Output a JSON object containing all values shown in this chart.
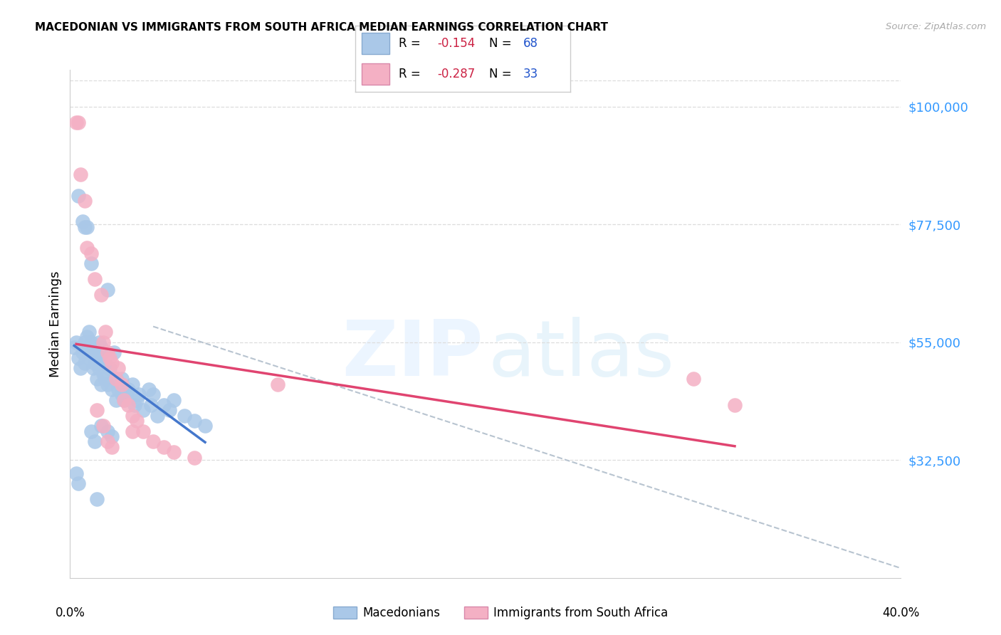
{
  "title": "MACEDONIAN VS IMMIGRANTS FROM SOUTH AFRICA MEDIAN EARNINGS CORRELATION CHART",
  "source": "Source: ZipAtlas.com",
  "ylabel": "Median Earnings",
  "ytick_labels": [
    "$32,500",
    "$55,000",
    "$77,500",
    "$100,000"
  ],
  "ytick_values": [
    32500,
    55000,
    77500,
    100000
  ],
  "legend_label_blue": "Macedonians",
  "legend_label_pink": "Immigrants from South Africa",
  "legend_blue_R": "-0.154",
  "legend_blue_N": "68",
  "legend_pink_R": "-0.287",
  "legend_pink_N": "33",
  "blue_color": "#aac8e8",
  "pink_color": "#f4b0c4",
  "blue_line_color": "#4477cc",
  "pink_line_color": "#e04470",
  "dashed_line_color": "#b8c4d0",
  "R_color": "#cc2244",
  "N_color": "#2255cc",
  "ytick_color": "#3399ff",
  "xmin": 0.0,
  "xmax": 0.4,
  "ymin": 10000,
  "ymax": 107000,
  "blue_points_x": [
    0.002,
    0.003,
    0.004,
    0.005,
    0.006,
    0.007,
    0.007,
    0.008,
    0.008,
    0.009,
    0.009,
    0.01,
    0.01,
    0.011,
    0.011,
    0.012,
    0.012,
    0.013,
    0.013,
    0.014,
    0.014,
    0.015,
    0.015,
    0.016,
    0.016,
    0.017,
    0.017,
    0.018,
    0.019,
    0.02,
    0.021,
    0.022,
    0.022,
    0.023,
    0.025,
    0.025,
    0.026,
    0.027,
    0.028,
    0.03,
    0.031,
    0.032,
    0.033,
    0.035,
    0.038,
    0.039,
    0.04,
    0.042,
    0.045,
    0.048,
    0.05,
    0.055,
    0.06,
    0.065,
    0.004,
    0.006,
    0.007,
    0.008,
    0.01,
    0.018,
    0.003,
    0.004,
    0.01,
    0.012,
    0.013,
    0.015,
    0.018,
    0.02
  ],
  "blue_points_y": [
    54000,
    55000,
    52000,
    50000,
    53000,
    55000,
    51000,
    56000,
    54000,
    52000,
    57000,
    53000,
    55000,
    50000,
    54000,
    51000,
    53000,
    48000,
    52000,
    50000,
    55000,
    47000,
    54000,
    49000,
    52000,
    48000,
    51000,
    47000,
    50000,
    46000,
    53000,
    48000,
    44000,
    46000,
    45000,
    48000,
    44000,
    45000,
    46000,
    47000,
    43000,
    44000,
    45000,
    42000,
    46000,
    43000,
    45000,
    41000,
    43000,
    42000,
    44000,
    41000,
    40000,
    39000,
    83000,
    78000,
    77000,
    77000,
    70000,
    65000,
    30000,
    28000,
    38000,
    36000,
    25000,
    39000,
    38000,
    37000
  ],
  "pink_points_x": [
    0.003,
    0.004,
    0.005,
    0.007,
    0.008,
    0.01,
    0.012,
    0.015,
    0.016,
    0.017,
    0.018,
    0.019,
    0.02,
    0.022,
    0.023,
    0.025,
    0.026,
    0.028,
    0.03,
    0.032,
    0.035,
    0.04,
    0.045,
    0.05,
    0.06,
    0.1,
    0.3,
    0.32,
    0.018,
    0.02,
    0.013,
    0.016,
    0.03
  ],
  "pink_points_y": [
    97000,
    97000,
    87000,
    82000,
    73000,
    72000,
    67000,
    64000,
    55000,
    57000,
    53000,
    52000,
    51000,
    48000,
    50000,
    47000,
    44000,
    43000,
    41000,
    40000,
    38000,
    36000,
    35000,
    34000,
    33000,
    47000,
    48000,
    43000,
    36000,
    35000,
    42000,
    39000,
    38000
  ]
}
